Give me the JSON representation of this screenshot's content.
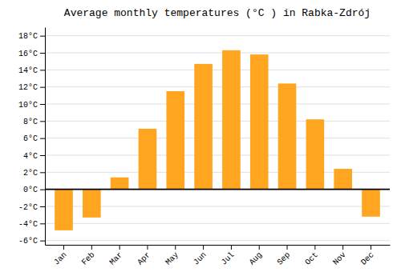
{
  "chart_data": {
    "type": "bar",
    "title": "Average monthly temperatures (°C ) in Rabka-Zdrój",
    "categories": [
      "Jan",
      "Feb",
      "Mar",
      "Apr",
      "May",
      "Jun",
      "Jul",
      "Aug",
      "Sep",
      "Oct",
      "Nov",
      "Dec"
    ],
    "values": [
      -4.8,
      -3.3,
      1.4,
      7.1,
      11.5,
      14.7,
      16.3,
      15.8,
      12.4,
      8.2,
      2.4,
      -3.2
    ],
    "color": "#FFA520",
    "ylim": [
      -6.5,
      19
    ],
    "yticks": [
      {
        "value": -6,
        "label": "-6°C"
      },
      {
        "value": -4,
        "label": "-4°C"
      },
      {
        "value": -2,
        "label": "-2°C"
      },
      {
        "value": 0,
        "label": "0°C"
      },
      {
        "value": 2,
        "label": "2°C"
      },
      {
        "value": 4,
        "label": "4°C"
      },
      {
        "value": 6,
        "label": "6°C"
      },
      {
        "value": 8,
        "label": "8°C"
      },
      {
        "value": 10,
        "label": "10°C"
      },
      {
        "value": 12,
        "label": "12°C"
      },
      {
        "value": 14,
        "label": "14°C"
      },
      {
        "value": 16,
        "label": "16°C"
      },
      {
        "value": 18,
        "label": "18°C"
      }
    ],
    "grid": true
  }
}
